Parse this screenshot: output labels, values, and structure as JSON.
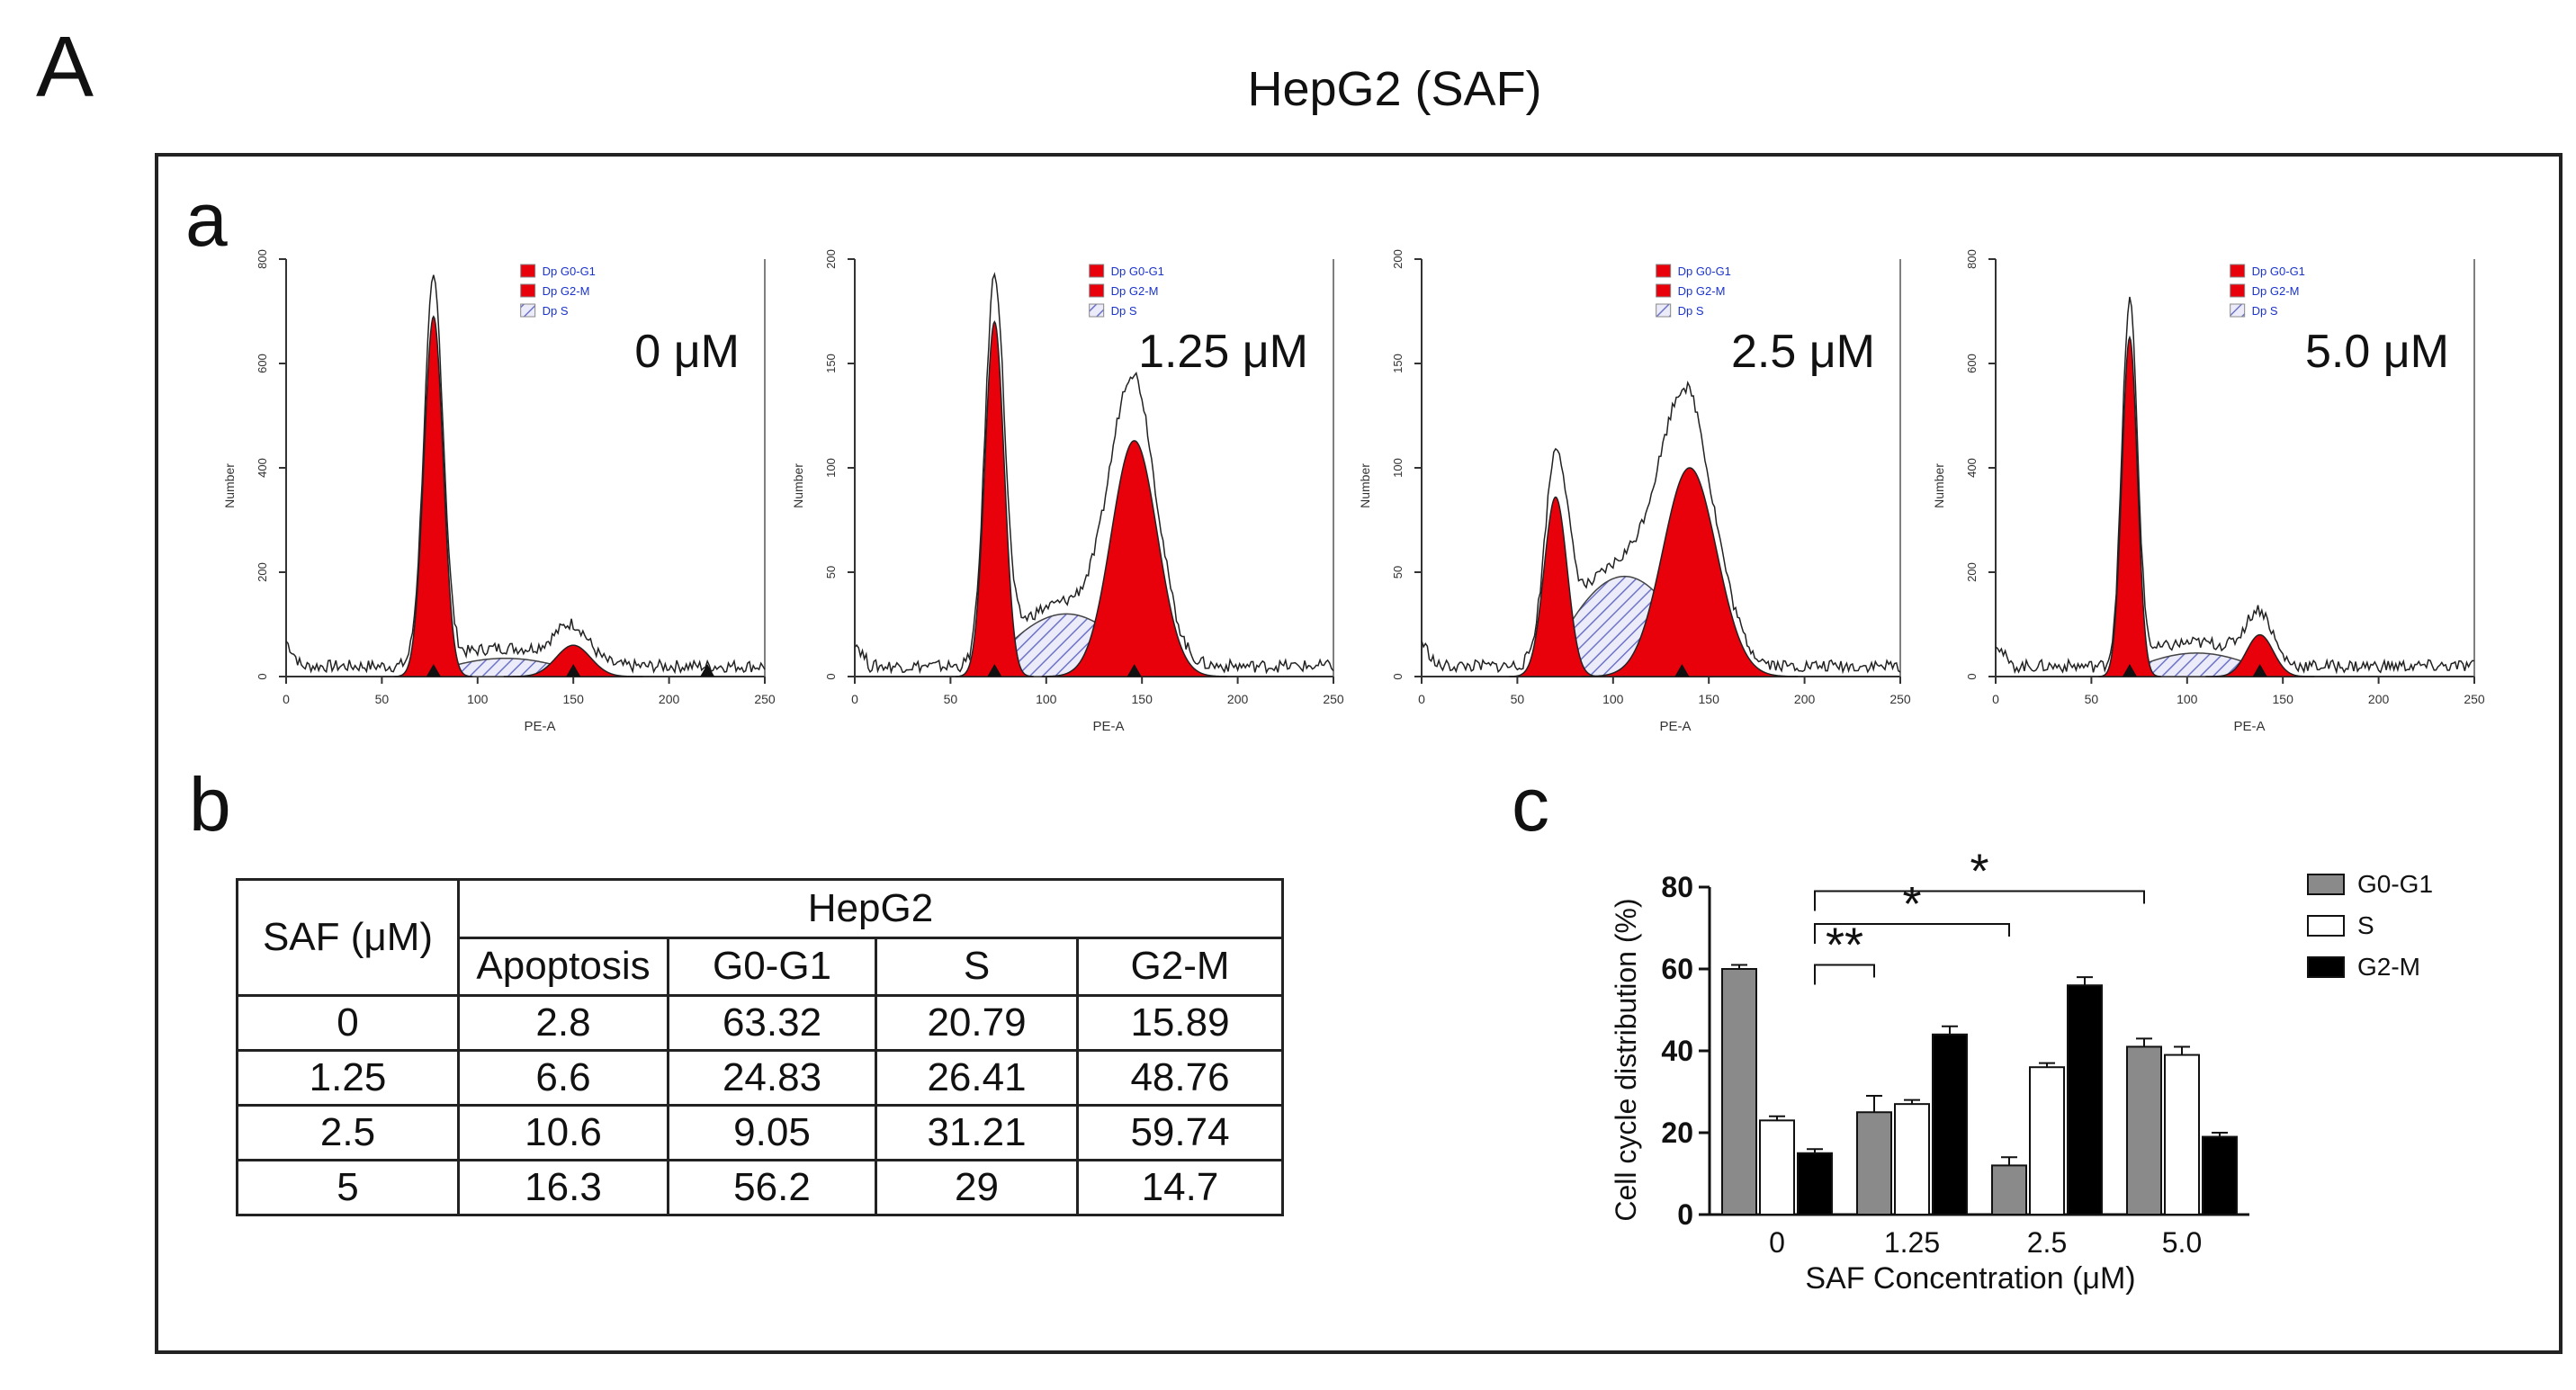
{
  "figure": {
    "letter": "A",
    "title": "HepG2 (SAF)"
  },
  "panels": {
    "a": "a",
    "b": "b",
    "c": "c"
  },
  "histograms": {
    "y_axis_label": "Number",
    "x_axis_label": "PE-A",
    "x_ticks": [
      "0",
      "50",
      "100",
      "150",
      "200",
      "250"
    ],
    "legend": [
      "Dp G0-G1",
      "Dp G2-M",
      "Dp S"
    ],
    "plots": [
      {
        "concentration": "0 μM",
        "y_ticks": [
          "0",
          "200",
          "400",
          "600",
          "800"
        ],
        "ymax": 800,
        "g1_center": 77,
        "g1_height": 690,
        "g1_sd": 5,
        "g2_center": 150,
        "g2_height": 60,
        "g2_sd": 9,
        "s_height": 35,
        "markers": [
          77,
          150,
          220
        ]
      },
      {
        "concentration": "1.25 μM",
        "y_ticks": [
          "0",
          "50",
          "100",
          "150",
          "200"
        ],
        "ymax": 200,
        "g1_center": 73,
        "g1_height": 170,
        "g1_sd": 5,
        "g2_center": 146,
        "g2_height": 113,
        "g2_sd": 12,
        "s_height": 30,
        "markers": [
          73,
          146
        ]
      },
      {
        "concentration": "2.5 μM",
        "y_ticks": [
          "0",
          "50",
          "100",
          "150",
          "200"
        ],
        "ymax": 200,
        "g1_center": 70,
        "g1_height": 86,
        "g1_sd": 6,
        "g2_center": 140,
        "g2_height": 100,
        "g2_sd": 14,
        "s_height": 48,
        "markers": [
          136
        ]
      },
      {
        "concentration": "5.0 μM",
        "y_ticks": [
          "0",
          "200",
          "400",
          "600",
          "800"
        ],
        "ymax": 800,
        "g1_center": 70,
        "g1_height": 650,
        "g1_sd": 4,
        "g2_center": 138,
        "g2_height": 80,
        "g2_sd": 7,
        "s_height": 45,
        "markers": [
          70,
          138
        ]
      }
    ]
  },
  "table": {
    "corner": "SAF (μM)",
    "group": "HepG2",
    "columns": [
      "Apoptosis",
      "G0-G1",
      "S",
      "G2-M"
    ],
    "rows": [
      [
        "0",
        "2.8",
        "63.32",
        "20.79",
        "15.89"
      ],
      [
        "1.25",
        "6.6",
        "24.83",
        "26.41",
        "48.76"
      ],
      [
        "2.5",
        "10.6",
        "9.05",
        "31.21",
        "59.74"
      ],
      [
        "5",
        "16.3",
        "56.2",
        "29",
        "14.7"
      ]
    ]
  },
  "chart_data": {
    "type": "bar",
    "title": "",
    "xlabel": "SAF Concentration (μM)",
    "ylabel": "Cell cycle distribution (%)",
    "categories": [
      "0",
      "1.25",
      "2.5",
      "5.0"
    ],
    "ylim": [
      0,
      80
    ],
    "y_ticks": [
      "0",
      "20",
      "40",
      "60",
      "80"
    ],
    "series": [
      {
        "name": "G0-G1",
        "color": "#8a8a8a",
        "values": [
          60,
          25,
          12,
          41
        ],
        "errors": [
          1,
          4,
          2,
          2
        ]
      },
      {
        "name": "S",
        "color": "#ffffff",
        "values": [
          23,
          27,
          36,
          39
        ],
        "errors": [
          1,
          1,
          1,
          2
        ]
      },
      {
        "name": "G2-M",
        "color": "#000000",
        "values": [
          15,
          44,
          56,
          19
        ],
        "errors": [
          1,
          2,
          2,
          1
        ]
      }
    ],
    "significance": [
      {
        "from": "0",
        "to": "1.25",
        "label": "**"
      },
      {
        "from": "0",
        "to": "2.5",
        "label": "*"
      },
      {
        "from": "0",
        "to": "5.0",
        "label": "*"
      }
    ],
    "legend_position": "right"
  },
  "colors": {
    "peak": "#e8000b",
    "s_hatch": "#6d74c8",
    "legend_text": "#1a33cc"
  }
}
